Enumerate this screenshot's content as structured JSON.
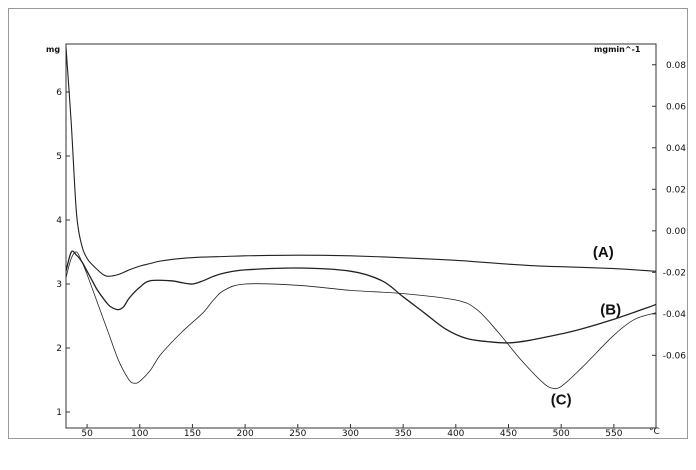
{
  "chart_data": {
    "type": "line",
    "title": "",
    "xlabel": "",
    "x_unit_label": "°C",
    "left_unit_label": "mg",
    "right_unit_label": "mgmin^-1",
    "xlim": [
      30,
      590
    ],
    "ylim_left": [
      0.75,
      6.75
    ],
    "ylim_right": [
      -0.095,
      0.09
    ],
    "x_ticks": [
      50,
      100,
      150,
      200,
      250,
      300,
      350,
      400,
      450,
      500,
      550
    ],
    "left_ticks": [
      1,
      2,
      3,
      4,
      5,
      6
    ],
    "right_ticks": [
      0.08,
      0.06,
      0.04,
      0.02,
      0.0,
      -0.02,
      -0.04,
      -0.06
    ],
    "right_tick_labels": [
      "0.08",
      "0.06",
      "0.04",
      "0.02",
      "0.00",
      "-0.02",
      "-0.04",
      "-0.06"
    ],
    "grid": false,
    "legend": "none",
    "series": [
      {
        "name": "(A)",
        "axis": "left",
        "x": [
          30,
          35,
          40,
          45,
          50,
          55,
          60,
          65,
          70,
          80,
          90,
          100,
          110,
          120,
          140,
          160,
          180,
          200,
          250,
          300,
          350,
          400,
          450,
          480,
          500,
          550,
          590
        ],
        "y": [
          6.7,
          5.5,
          4.1,
          3.6,
          3.4,
          3.3,
          3.22,
          3.15,
          3.12,
          3.15,
          3.22,
          3.28,
          3.32,
          3.36,
          3.4,
          3.42,
          3.43,
          3.44,
          3.45,
          3.44,
          3.41,
          3.37,
          3.31,
          3.28,
          3.27,
          3.24,
          3.2
        ]
      },
      {
        "name": "(B)",
        "axis": "left",
        "x": [
          30,
          35,
          40,
          45,
          50,
          55,
          60,
          70,
          75,
          80,
          85,
          90,
          100,
          110,
          130,
          140,
          150,
          160,
          170,
          180,
          200,
          250,
          300,
          330,
          350,
          370,
          390,
          410,
          430,
          450,
          470,
          500,
          520,
          550,
          580,
          590
        ],
        "y": [
          3.2,
          3.5,
          3.45,
          3.35,
          3.2,
          3.05,
          2.9,
          2.68,
          2.62,
          2.6,
          2.65,
          2.78,
          2.95,
          3.05,
          3.05,
          3.02,
          3.0,
          3.05,
          3.12,
          3.17,
          3.22,
          3.25,
          3.2,
          3.05,
          2.8,
          2.55,
          2.3,
          2.15,
          2.1,
          2.08,
          2.12,
          2.22,
          2.3,
          2.45,
          2.62,
          2.68
        ]
      },
      {
        "name": "(C)",
        "axis": "left",
        "x": [
          30,
          35,
          40,
          45,
          50,
          60,
          70,
          80,
          90,
          95,
          100,
          110,
          120,
          140,
          160,
          170,
          180,
          200,
          250,
          300,
          350,
          400,
          420,
          440,
          460,
          480,
          490,
          500,
          520,
          550,
          570,
          590
        ],
        "y": [
          3.1,
          3.4,
          3.5,
          3.35,
          3.15,
          2.7,
          2.25,
          1.8,
          1.5,
          1.45,
          1.48,
          1.65,
          1.9,
          2.25,
          2.55,
          2.75,
          2.9,
          3.0,
          2.98,
          2.9,
          2.85,
          2.75,
          2.6,
          2.25,
          1.85,
          1.5,
          1.38,
          1.4,
          1.7,
          2.2,
          2.45,
          2.55
        ]
      }
    ],
    "annotations": [
      {
        "text": "(A)",
        "x": 540,
        "y": 3.42
      },
      {
        "text": "(B)",
        "x": 547,
        "y": 2.52
      },
      {
        "text": "(C)",
        "x": 500,
        "y": 1.12
      }
    ],
    "colors": {
      "line": "#222222",
      "axis": "#333333",
      "frame": "#888888"
    }
  }
}
